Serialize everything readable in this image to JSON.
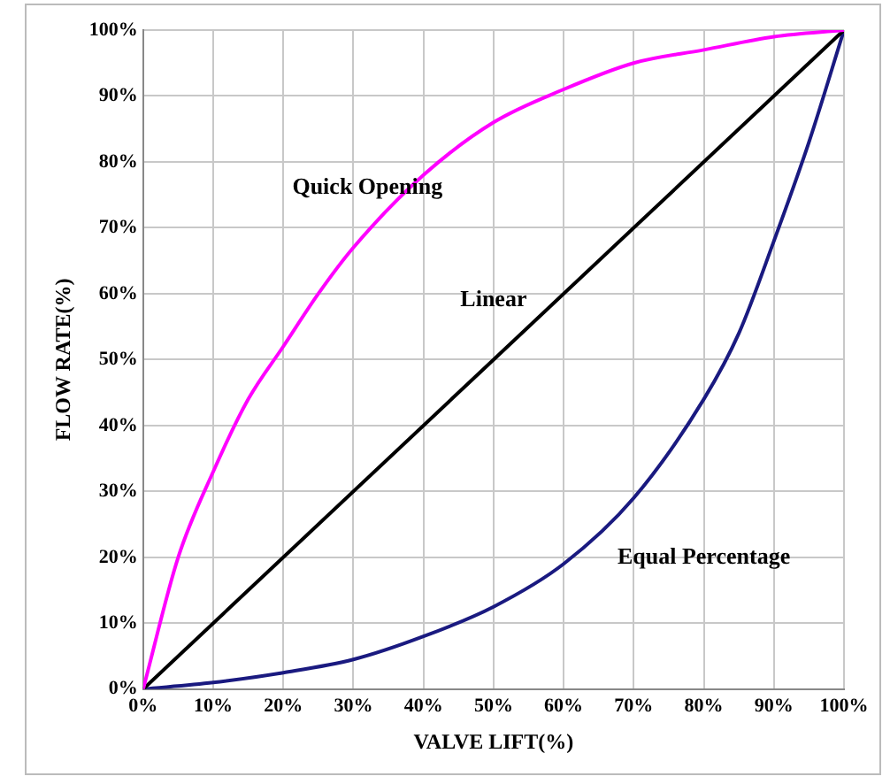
{
  "chart_data": {
    "type": "line",
    "xlabel": "VALVE LIFT(%)",
    "ylabel": "FLOW RATE(%)",
    "xlim": [
      0,
      100
    ],
    "ylim": [
      0,
      100
    ],
    "xticks": [
      {
        "value": 0,
        "label": "0%"
      },
      {
        "value": 10,
        "label": "10%"
      },
      {
        "value": 20,
        "label": "20%"
      },
      {
        "value": 30,
        "label": "30%"
      },
      {
        "value": 40,
        "label": "40%"
      },
      {
        "value": 50,
        "label": "50%"
      },
      {
        "value": 60,
        "label": "60%"
      },
      {
        "value": 70,
        "label": "70%"
      },
      {
        "value": 80,
        "label": "80%"
      },
      {
        "value": 90,
        "label": "90%"
      },
      {
        "value": 100,
        "label": "100%"
      }
    ],
    "yticks": [
      {
        "value": 0,
        "label": "0%"
      },
      {
        "value": 10,
        "label": "10%"
      },
      {
        "value": 20,
        "label": "20%"
      },
      {
        "value": 30,
        "label": "30%"
      },
      {
        "value": 40,
        "label": "40%"
      },
      {
        "value": 50,
        "label": "50%"
      },
      {
        "value": 60,
        "label": "60%"
      },
      {
        "value": 70,
        "label": "70%"
      },
      {
        "value": 80,
        "label": "80%"
      },
      {
        "value": 90,
        "label": "90%"
      },
      {
        "value": 100,
        "label": "100%"
      }
    ],
    "grid": true,
    "marker": "none",
    "line_style": "solid",
    "series": [
      {
        "name": "Quick Opening",
        "color": "#ff00ff",
        "x": [
          0,
          5,
          10,
          15,
          20,
          25,
          30,
          40,
          50,
          60,
          70,
          80,
          90,
          100
        ],
        "values": [
          0,
          20,
          33,
          44,
          52,
          60,
          67,
          78,
          86,
          91,
          95,
          97,
          99,
          100
        ]
      },
      {
        "name": "Linear",
        "color": "#000000",
        "x": [
          0,
          100
        ],
        "values": [
          0,
          100
        ]
      },
      {
        "name": "Equal Percentage",
        "color": "#1a1a80",
        "x": [
          0,
          10,
          20,
          30,
          40,
          50,
          60,
          70,
          80,
          85,
          90,
          95,
          100
        ],
        "values": [
          0,
          1,
          2.5,
          4.5,
          8,
          12.5,
          19,
          29,
          44,
          54,
          68,
          83,
          100
        ]
      }
    ]
  }
}
